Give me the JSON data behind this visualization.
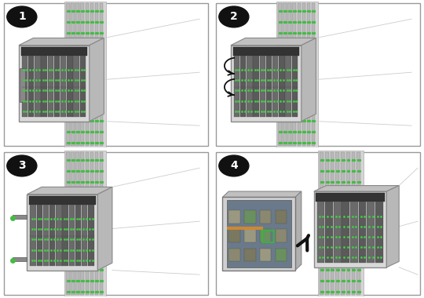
{
  "bg_color": "#ffffff",
  "panel_border": "#999999",
  "number_bg": "#111111",
  "number_fg": "#ffffff",
  "rack_fill": "#c8c8c8",
  "rack_edge": "#888888",
  "rack_dark": "#a0a0a0",
  "blade_fill": "#606060",
  "blade_edge": "#404040",
  "green": "#44bb44",
  "chassis_fill": "#d0d0d0",
  "chassis_edge": "#888888",
  "chassis_top": "#b8b8b8",
  "arrow_color": "#111111",
  "persp_line": "#bbbbbb",
  "module_fill": "#c8c8c8",
  "module_pcb": "#5a6a7a",
  "module_comp": "#8a8870"
}
